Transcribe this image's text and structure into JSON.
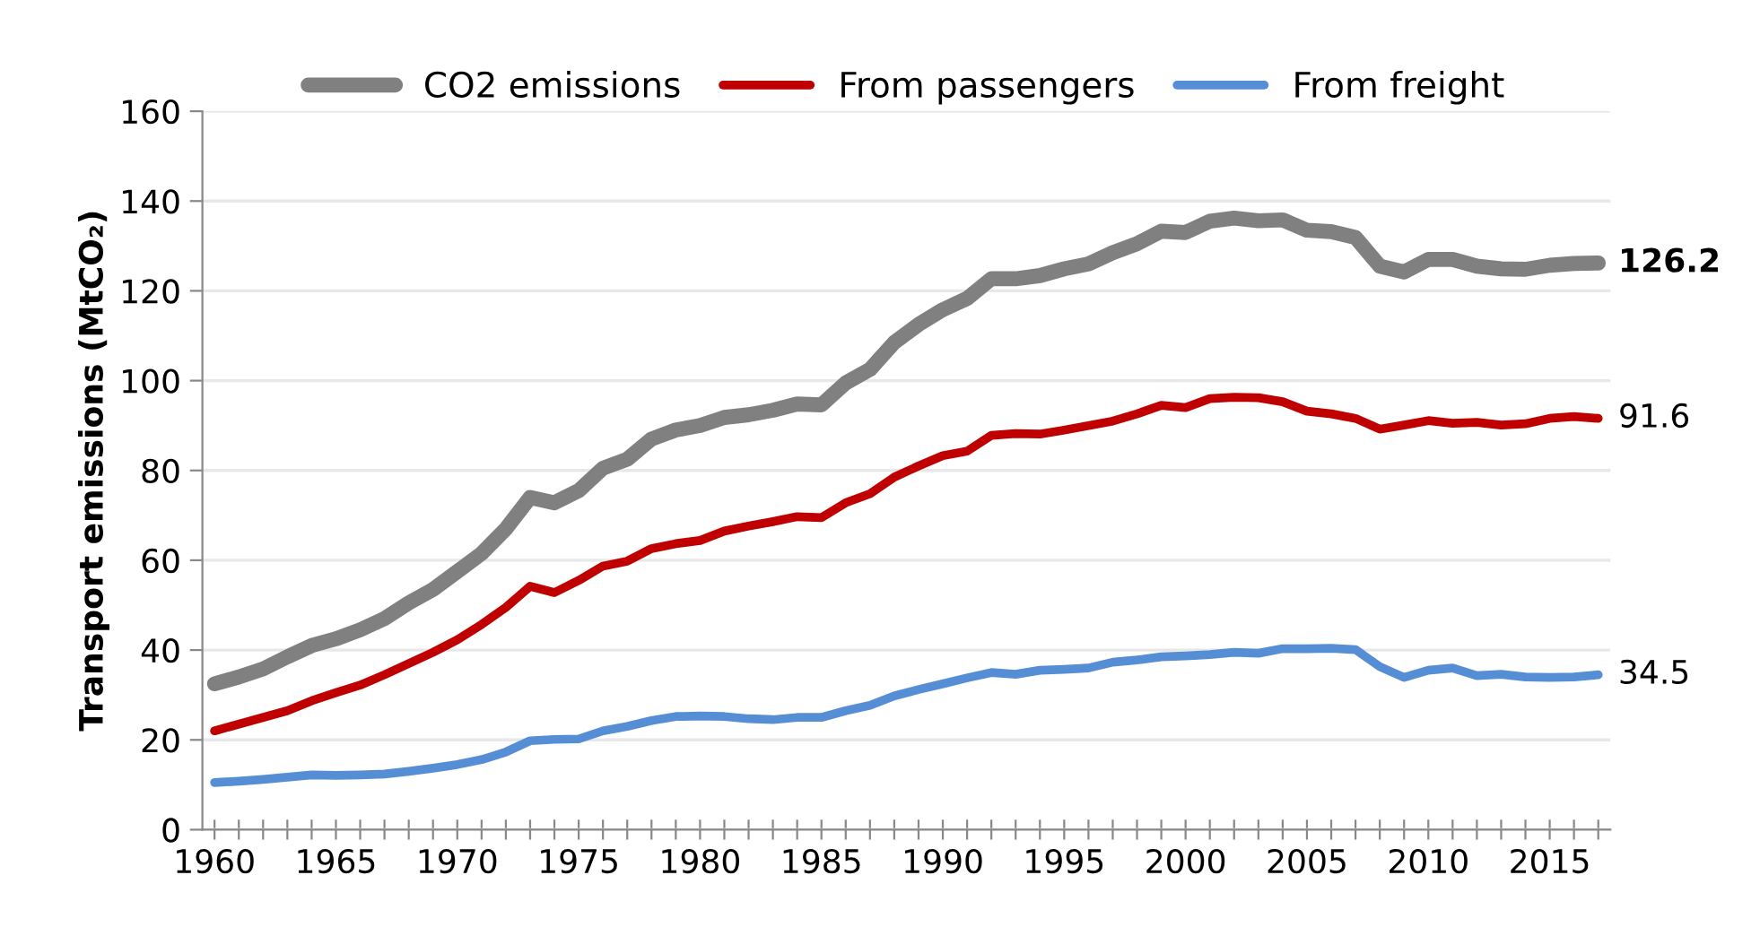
{
  "chart_data": {
    "type": "line",
    "ylabel": "Transport emissions (MtCO₂)",
    "x": [
      1960,
      1961,
      1962,
      1963,
      1964,
      1965,
      1966,
      1967,
      1968,
      1969,
      1970,
      1971,
      1972,
      1973,
      1974,
      1975,
      1976,
      1977,
      1978,
      1979,
      1980,
      1981,
      1982,
      1983,
      1984,
      1985,
      1986,
      1987,
      1988,
      1989,
      1990,
      1991,
      1992,
      1993,
      1994,
      1995,
      1996,
      1997,
      1998,
      1999,
      2000,
      2001,
      2002,
      2003,
      2004,
      2005,
      2006,
      2007,
      2008,
      2009,
      2010,
      2011,
      2012,
      2013,
      2014,
      2015,
      2016,
      2017
    ],
    "series": [
      {
        "name": "CO2 emissions",
        "color": "#808080",
        "values": [
          32.5,
          34,
          35.8,
          38.5,
          41,
          42.5,
          44.5,
          47,
          50.5,
          53.5,
          57.5,
          61.5,
          67,
          74,
          72.8,
          75.5,
          80.5,
          82.5,
          87,
          89,
          90,
          91.8,
          92.4,
          93.4,
          94.8,
          94.6,
          99.5,
          102.5,
          108.5,
          112.5,
          115.8,
          118.3,
          122.7,
          122.7,
          123.4,
          124.9,
          126,
          128.5,
          130.5,
          133.3,
          133,
          135.5,
          136.2,
          135.6,
          135.8,
          133.5,
          133.2,
          131.9,
          125.5,
          124.2,
          127,
          127,
          125.5,
          124.9,
          124.8,
          125.7,
          126.1,
          126.2
        ]
      },
      {
        "name": "From passengers",
        "color": "#c00000",
        "values": [
          22,
          23.5,
          25,
          26.5,
          28.7,
          30.5,
          32.2,
          34.5,
          37,
          39.5,
          42.3,
          45.7,
          49.5,
          54.2,
          52.8,
          55.5,
          58.7,
          59.8,
          62.6,
          63.7,
          64.4,
          66.5,
          67.6,
          68.6,
          69.7,
          69.5,
          72.8,
          74.8,
          78.5,
          81,
          83.3,
          84.3,
          87.8,
          88.2,
          88.1,
          89,
          90,
          91,
          92.6,
          94.5,
          94,
          96,
          96.3,
          96.2,
          95.3,
          93.2,
          92.6,
          91.6,
          89.2,
          90.1,
          91.1,
          90.5,
          90.7,
          90.1,
          90.4,
          91.6,
          92,
          91.6
        ]
      },
      {
        "name": "From freight",
        "color": "#558ed5",
        "values": [
          10.5,
          10.8,
          11.2,
          11.7,
          12.2,
          12.1,
          12.2,
          12.4,
          13,
          13.7,
          14.5,
          15.6,
          17.3,
          19.8,
          20.1,
          20.2,
          22,
          23,
          24.3,
          25.2,
          25.3,
          25.2,
          24.7,
          24.5,
          25,
          25,
          26.5,
          27.7,
          29.8,
          31.2,
          32.5,
          33.8,
          35,
          34.6,
          35.5,
          35.7,
          36,
          37.3,
          37.8,
          38.5,
          38.7,
          39,
          39.5,
          39.3,
          40.3,
          40.3,
          40.4,
          40.1,
          36.3,
          33.9,
          35.5,
          36,
          34.3,
          34.6,
          34,
          33.9,
          34,
          34.5
        ]
      }
    ],
    "value_labels": [
      [
        null,
        null,
        null,
        null,
        null,
        null,
        null,
        null,
        null,
        null,
        null,
        null,
        null,
        null,
        null,
        null,
        null,
        null,
        null,
        null,
        null,
        null,
        null,
        null,
        null,
        null,
        null,
        null,
        null,
        null,
        null,
        null,
        null,
        null,
        null,
        null,
        null,
        null,
        null,
        null,
        null,
        null,
        null,
        null,
        null,
        null,
        null,
        null,
        null,
        null,
        null,
        null,
        null,
        null,
        null,
        null,
        null,
        "126.2"
      ],
      [
        null,
        null,
        null,
        null,
        null,
        null,
        null,
        null,
        null,
        null,
        null,
        null,
        null,
        null,
        null,
        null,
        null,
        null,
        null,
        null,
        null,
        null,
        null,
        null,
        null,
        null,
        null,
        null,
        null,
        null,
        null,
        null,
        null,
        null,
        null,
        null,
        null,
        null,
        null,
        null,
        null,
        null,
        null,
        null,
        null,
        null,
        null,
        null,
        null,
        null,
        null,
        null,
        null,
        null,
        null,
        null,
        null,
        "91.6"
      ],
      [
        null,
        null,
        null,
        null,
        null,
        null,
        null,
        null,
        null,
        null,
        null,
        null,
        null,
        null,
        null,
        null,
        null,
        null,
        null,
        null,
        null,
        null,
        null,
        null,
        null,
        null,
        null,
        null,
        null,
        null,
        null,
        null,
        null,
        null,
        null,
        null,
        null,
        null,
        null,
        null,
        null,
        null,
        null,
        null,
        null,
        null,
        null,
        null,
        null,
        null,
        null,
        null,
        null,
        null,
        null,
        null,
        null,
        "34.5"
      ]
    ],
    "xlim": [
      1959.5,
      2017.5
    ],
    "xticks": [
      {
        "value": 1960,
        "label": "1960"
      },
      {
        "value": 1961,
        "label": null
      },
      {
        "value": 1962,
        "label": null
      },
      {
        "value": 1963,
        "label": null
      },
      {
        "value": 1964,
        "label": null
      },
      {
        "value": 1965,
        "label": "1965"
      },
      {
        "value": 1966,
        "label": null
      },
      {
        "value": 1967,
        "label": null
      },
      {
        "value": 1968,
        "label": null
      },
      {
        "value": 1969,
        "label": null
      },
      {
        "value": 1970,
        "label": "1970"
      },
      {
        "value": 1971,
        "label": null
      },
      {
        "value": 1972,
        "label": null
      },
      {
        "value": 1973,
        "label": null
      },
      {
        "value": 1974,
        "label": null
      },
      {
        "value": 1975,
        "label": "1975"
      },
      {
        "value": 1976,
        "label": null
      },
      {
        "value": 1977,
        "label": null
      },
      {
        "value": 1978,
        "label": null
      },
      {
        "value": 1979,
        "label": null
      },
      {
        "value": 1980,
        "label": "1980"
      },
      {
        "value": 1981,
        "label": null
      },
      {
        "value": 1982,
        "label": null
      },
      {
        "value": 1983,
        "label": null
      },
      {
        "value": 1984,
        "label": null
      },
      {
        "value": 1985,
        "label": "1985"
      },
      {
        "value": 1986,
        "label": null
      },
      {
        "value": 1987,
        "label": null
      },
      {
        "value": 1988,
        "label": null
      },
      {
        "value": 1989,
        "label": null
      },
      {
        "value": 1990,
        "label": "1990"
      },
      {
        "value": 1991,
        "label": null
      },
      {
        "value": 1992,
        "label": null
      },
      {
        "value": 1993,
        "label": null
      },
      {
        "value": 1994,
        "label": null
      },
      {
        "value": 1995,
        "label": "1995"
      },
      {
        "value": 1996,
        "label": null
      },
      {
        "value": 1997,
        "label": null
      },
      {
        "value": 1998,
        "label": null
      },
      {
        "value": 1999,
        "label": null
      },
      {
        "value": 2000,
        "label": "2000"
      },
      {
        "value": 2001,
        "label": null
      },
      {
        "value": 2002,
        "label": null
      },
      {
        "value": 2003,
        "label": null
      },
      {
        "value": 2004,
        "label": null
      },
      {
        "value": 2005,
        "label": "2005"
      },
      {
        "value": 2006,
        "label": null
      },
      {
        "value": 2007,
        "label": null
      },
      {
        "value": 2008,
        "label": null
      },
      {
        "value": 2009,
        "label": null
      },
      {
        "value": 2010,
        "label": "2010"
      },
      {
        "value": 2011,
        "label": null
      },
      {
        "value": 2012,
        "label": null
      },
      {
        "value": 2013,
        "label": null
      },
      {
        "value": 2014,
        "label": null
      },
      {
        "value": 2015,
        "label": "2015"
      },
      {
        "value": 2016,
        "label": null
      },
      {
        "value": 2017,
        "label": null
      }
    ],
    "ylim": [
      0,
      160
    ],
    "yticks": [
      0,
      20,
      40,
      60,
      80,
      100,
      120,
      140,
      160
    ],
    "grid": "y",
    "legend": "top",
    "marker": "none",
    "line_style": "solid"
  }
}
